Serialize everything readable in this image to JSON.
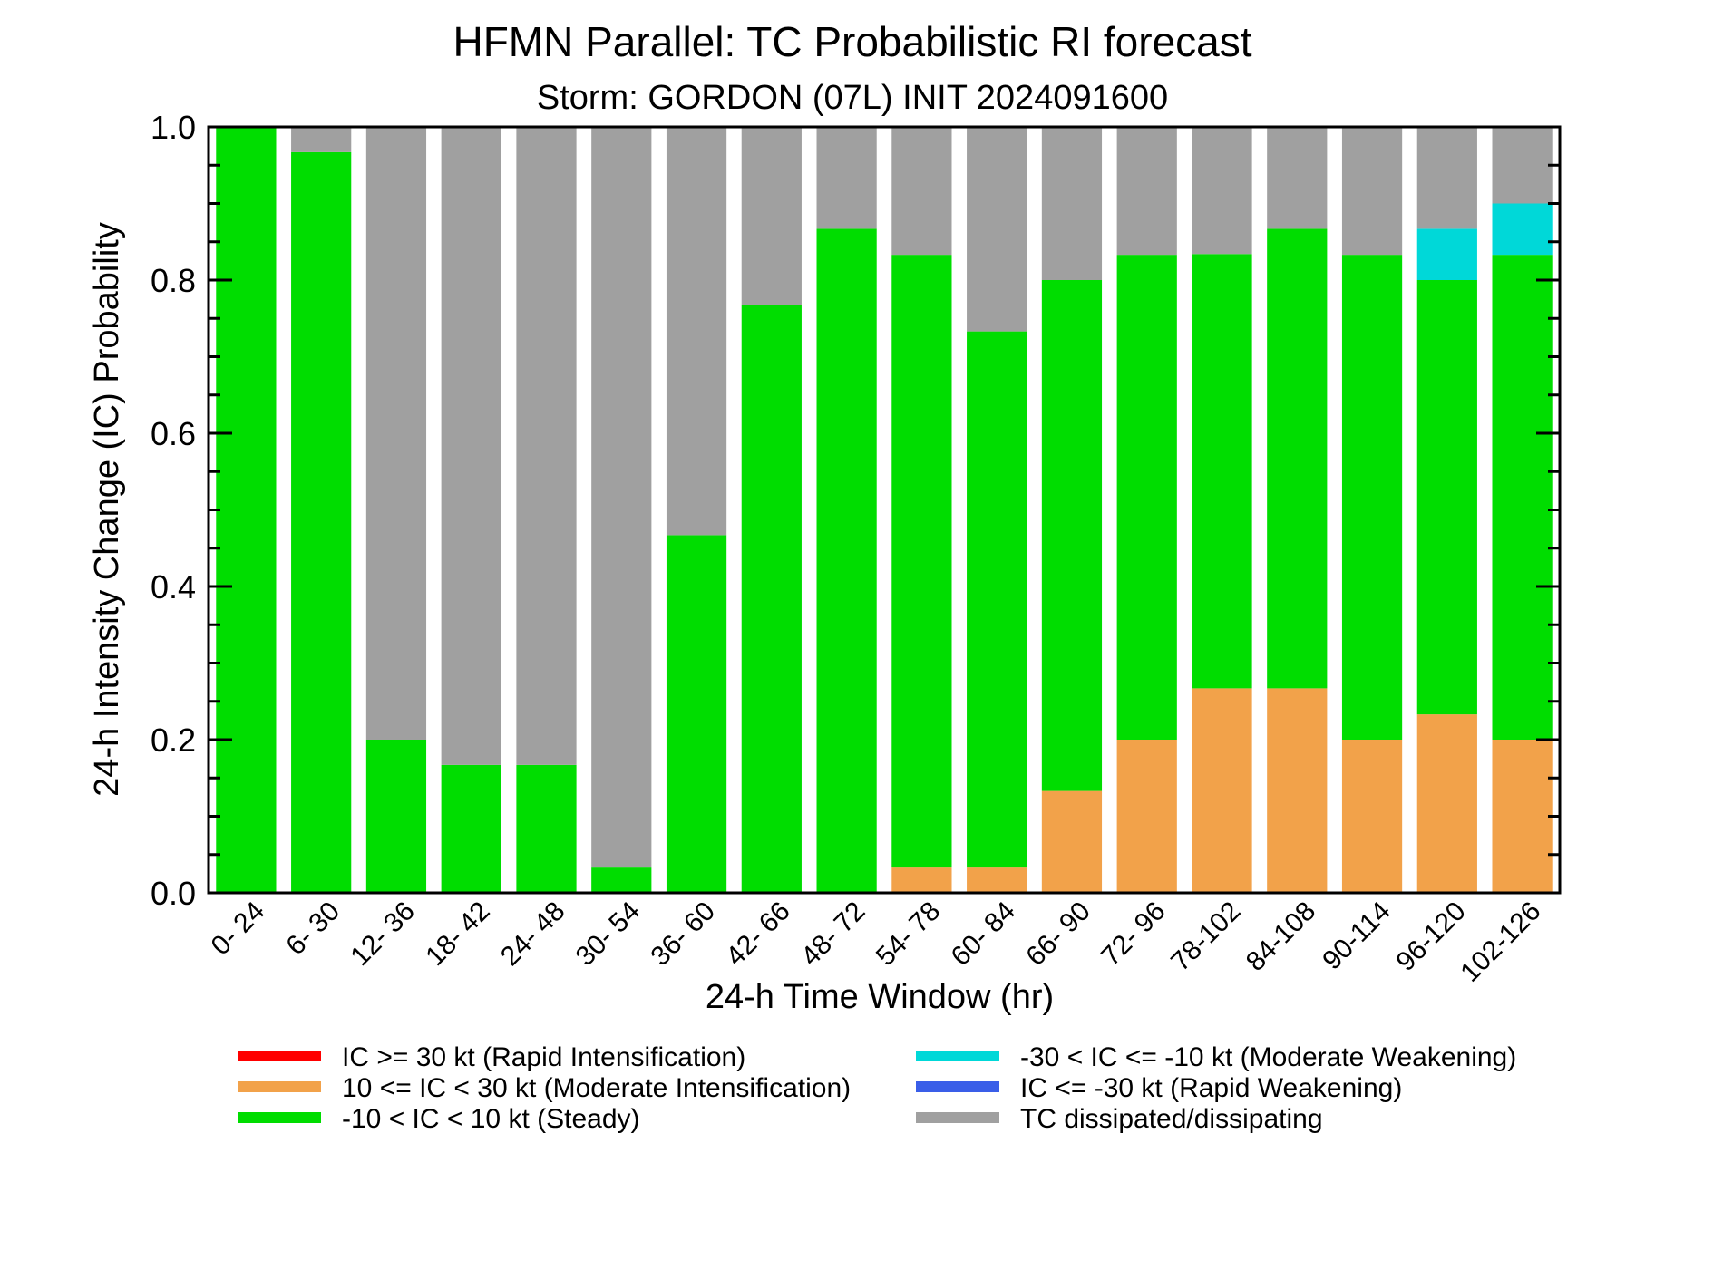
{
  "chart_data": {
    "type": "bar",
    "stacked": true,
    "title": "HFMN Parallel: TC Probabilistic RI forecast",
    "subtitle": "Storm: GORDON (07L) INIT 2024091600",
    "xlabel": "24-h Time Window (hr)",
    "ylabel": "24-h Intensity Change (IC) Probability",
    "ylim": [
      0,
      1
    ],
    "yticks": [
      "0.0",
      "0.2",
      "0.4",
      "0.6",
      "0.8",
      "1.0"
    ],
    "grid": false,
    "legend_position": "bottom",
    "categories": [
      "0- 24",
      "6- 30",
      "12- 36",
      "18- 42",
      "24- 48",
      "30- 54",
      "36- 60",
      "42- 66",
      "48- 72",
      "54- 78",
      "60- 84",
      "66- 90",
      "72- 96",
      "78-102",
      "84-108",
      "90-114",
      "96-120",
      "102-126"
    ],
    "series": [
      {
        "name": "IC >= 30 kt (Rapid Intensification)",
        "color": "#ff0000",
        "values": [
          0,
          0,
          0,
          0,
          0,
          0,
          0,
          0,
          0,
          0,
          0,
          0,
          0,
          0,
          0,
          0,
          0,
          0
        ]
      },
      {
        "name": "10 <= IC < 30 kt (Moderate Intensification)",
        "color": "#f2a24a",
        "values": [
          0,
          0,
          0,
          0,
          0,
          0,
          0,
          0,
          0,
          0.033,
          0.033,
          0.133,
          0.2,
          0.267,
          0.267,
          0.2,
          0.233,
          0.2
        ]
      },
      {
        "name": "-10 < IC < 10 kt (Steady)",
        "color": "#00dd00",
        "values": [
          1.0,
          0.967,
          0.2,
          0.167,
          0.167,
          0.033,
          0.467,
          0.767,
          0.867,
          0.8,
          0.7,
          0.667,
          0.633,
          0.567,
          0.6,
          0.633,
          0.567,
          0.633
        ]
      },
      {
        "name": "-30 < IC <= -10 kt (Moderate Weakening)",
        "color": "#00d8d8",
        "values": [
          0,
          0,
          0,
          0,
          0,
          0,
          0,
          0,
          0,
          0,
          0,
          0,
          0,
          0,
          0,
          0,
          0.067,
          0.067
        ]
      },
      {
        "name": "IC <= -30 kt (Rapid Weakening)",
        "color": "#3a5ee8",
        "values": [
          0,
          0,
          0,
          0,
          0,
          0,
          0,
          0,
          0,
          0,
          0,
          0,
          0,
          0,
          0,
          0,
          0,
          0
        ]
      },
      {
        "name": "TC dissipated/dissipating",
        "color": "#a0a0a0",
        "values": [
          0,
          0.033,
          0.8,
          0.833,
          0.833,
          0.967,
          0.533,
          0.233,
          0.133,
          0.167,
          0.267,
          0.2,
          0.167,
          0.167,
          0.133,
          0.167,
          0.133,
          0.1
        ]
      }
    ],
    "stack_order": [
      1,
      2,
      3,
      5
    ],
    "legend_columns": [
      [
        0,
        1,
        2
      ],
      [
        3,
        4,
        5
      ]
    ]
  }
}
